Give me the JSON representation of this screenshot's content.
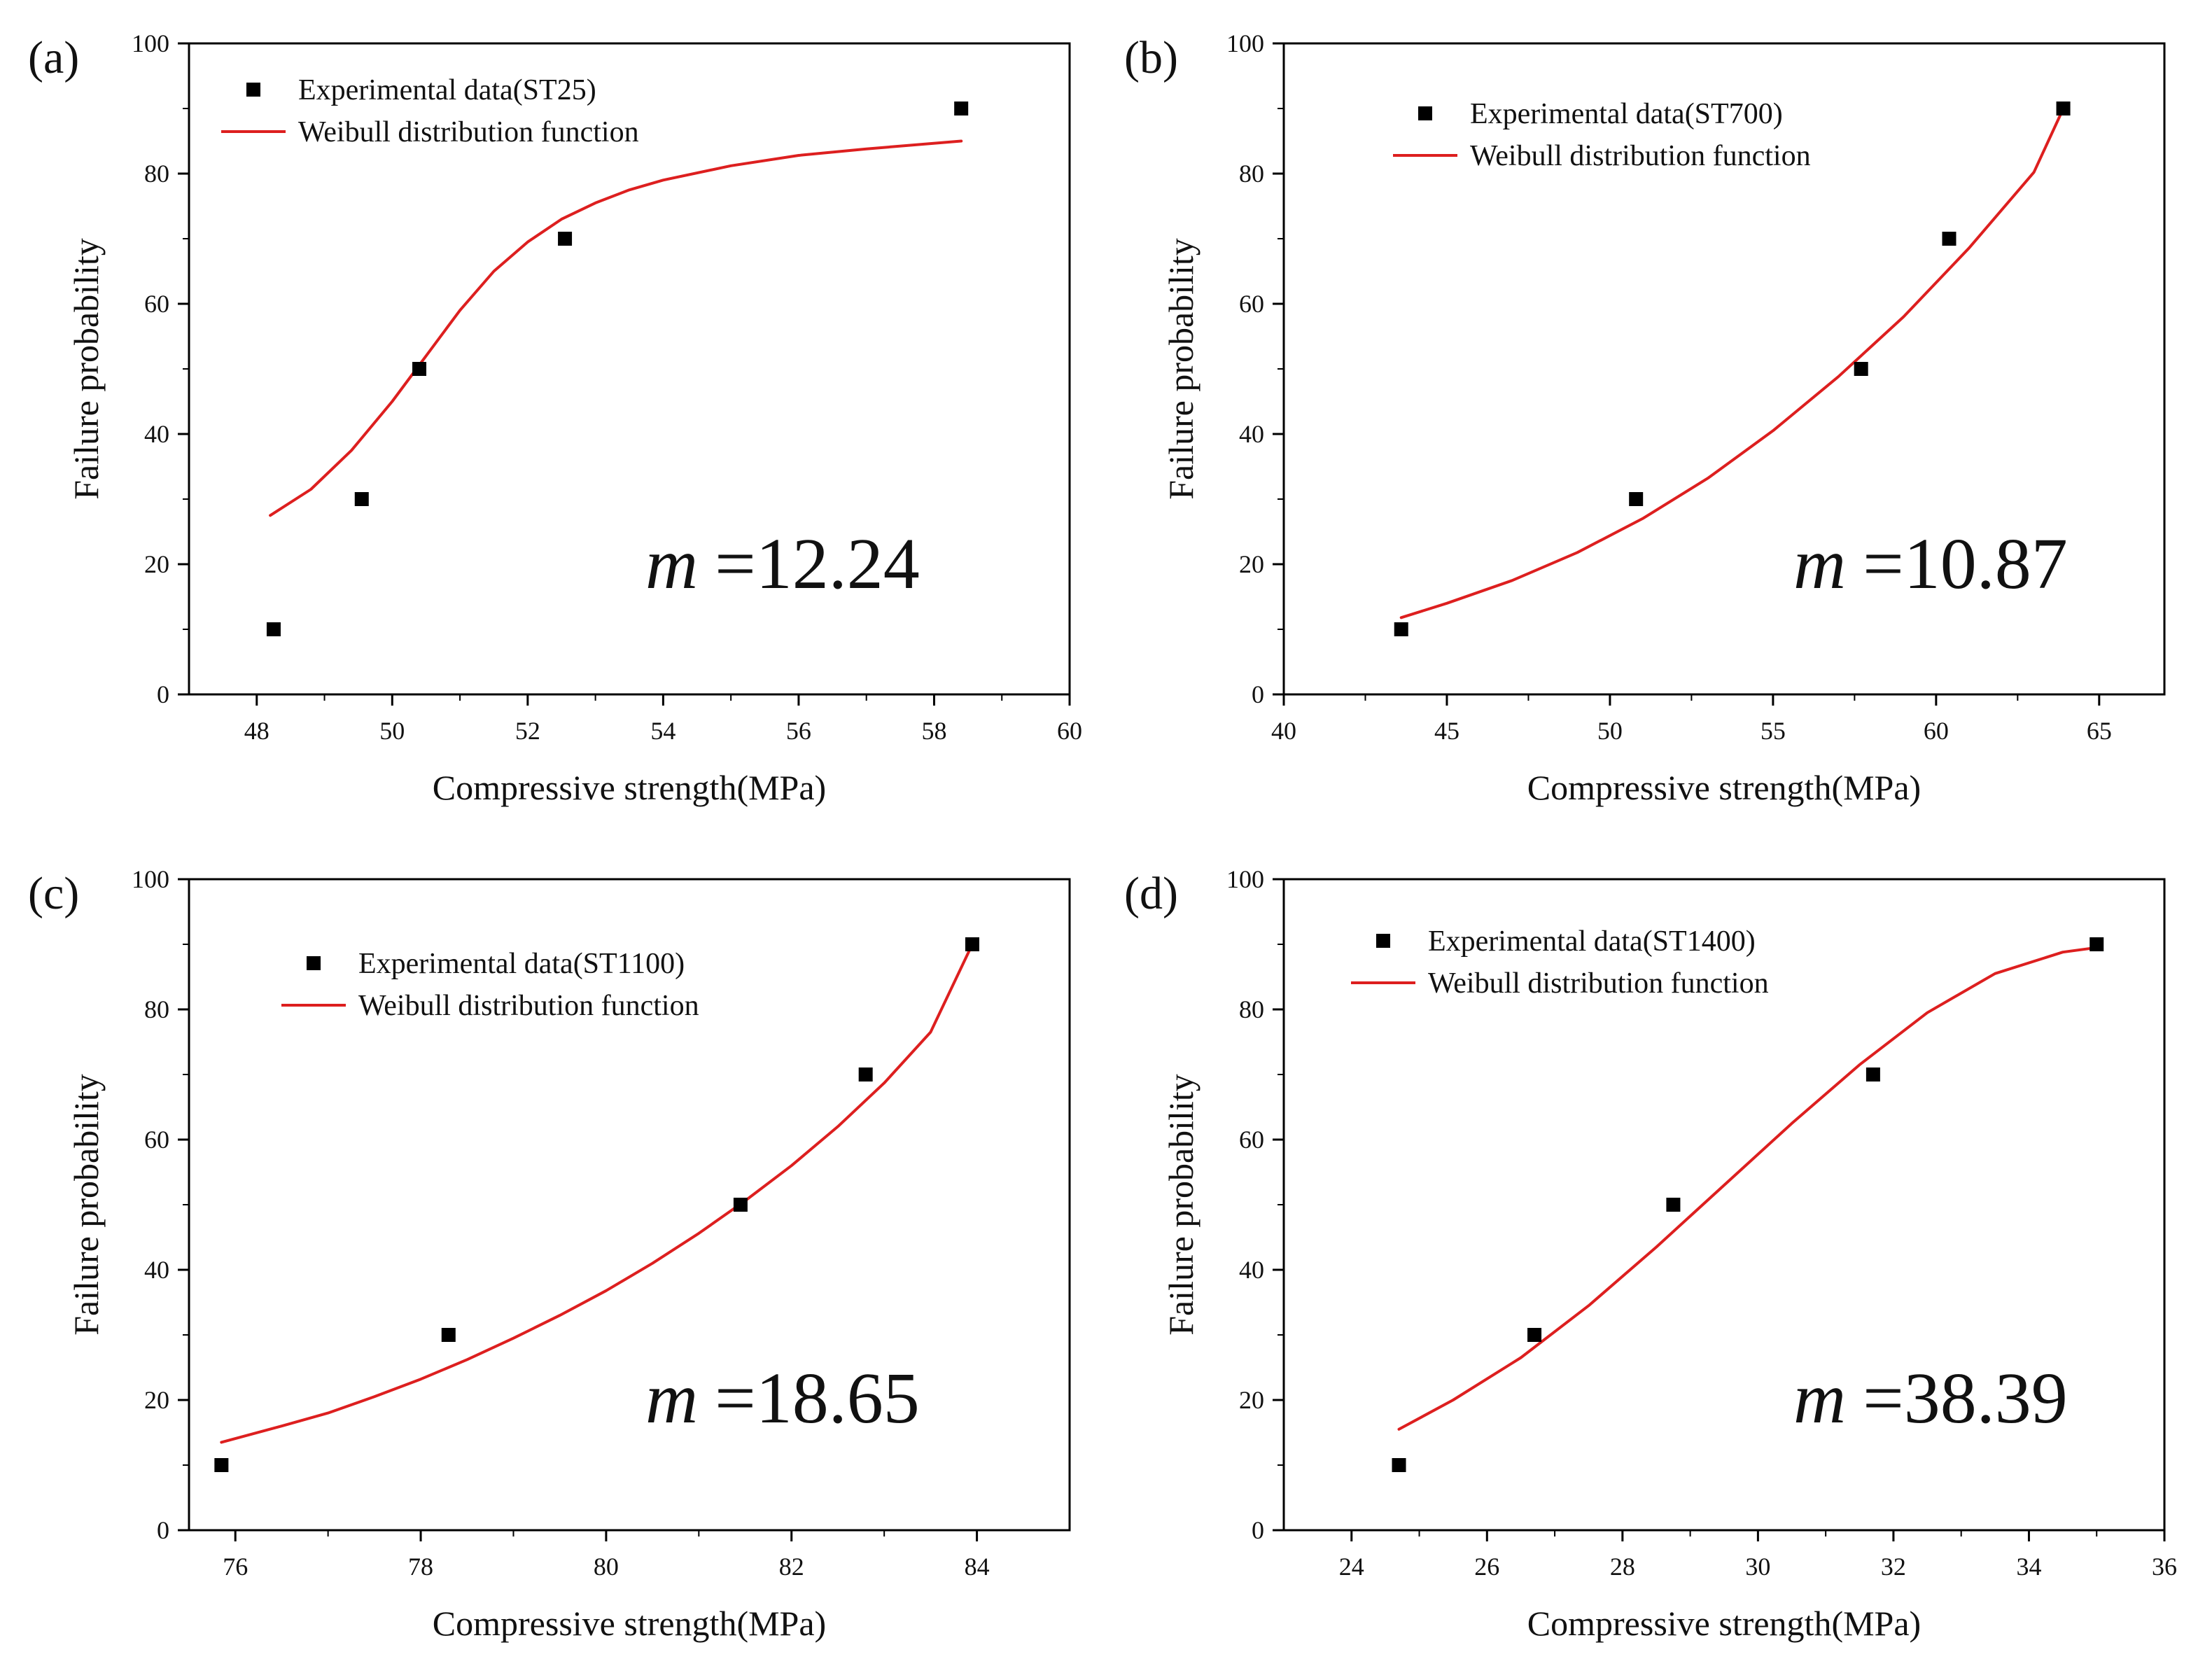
{
  "figure": {
    "colors": {
      "curve": "#dd1f1f",
      "marker": "#000000",
      "axis": "#000000"
    }
  },
  "chart_data": [
    {
      "panel": "(a)",
      "type": "scatter",
      "title": "",
      "xlabel": "Compressive strength(MPa)",
      "ylabel": "Failure probability",
      "xlim": [
        47,
        60
      ],
      "ylim": [
        0,
        100
      ],
      "xticks": [
        48,
        50,
        52,
        54,
        56,
        58,
        60
      ],
      "yticks": [
        0,
        20,
        40,
        60,
        80,
        100
      ],
      "legend": {
        "location": "top-left",
        "marker_label": "Experimental data(ST25)",
        "line_label": "Weibull distribution function"
      },
      "annotation": {
        "symbol": "m",
        "text": "=12.24"
      },
      "series": [
        {
          "name": "Experimental data(ST25)",
          "kind": "scatter",
          "x": [
            48.25,
            49.55,
            50.4,
            52.55,
            58.4
          ],
          "y": [
            10,
            30,
            50,
            70,
            90
          ]
        },
        {
          "name": "Weibull distribution function",
          "kind": "line",
          "x": [
            48.2,
            48.8,
            49.4,
            50.0,
            50.5,
            51.0,
            51.5,
            52.0,
            52.5,
            53.0,
            53.5,
            54.0,
            55.0,
            56.0,
            57.0,
            58.4
          ],
          "y": [
            27.5,
            31.5,
            37.5,
            45.0,
            52.0,
            59.0,
            65.0,
            69.5,
            73.0,
            75.5,
            77.5,
            79.0,
            81.2,
            82.8,
            83.8,
            85.0
          ]
        }
      ]
    },
    {
      "panel": "(b)",
      "type": "scatter",
      "title": "",
      "xlabel": "Compressive strength(MPa)",
      "ylabel": "Failure probability",
      "xlim": [
        40,
        67
      ],
      "ylim": [
        0,
        100
      ],
      "xticks": [
        40,
        45,
        50,
        55,
        60,
        65
      ],
      "yticks": [
        0,
        20,
        40,
        60,
        80,
        100
      ],
      "legend": {
        "location": "top-left",
        "marker_label": "Experimental data(ST700)",
        "line_label": "Weibull distribution function"
      },
      "annotation": {
        "symbol": "m",
        "text": "=10.87"
      },
      "series": [
        {
          "name": "Experimental data(ST700)",
          "kind": "scatter",
          "x": [
            43.6,
            50.8,
            57.7,
            60.4,
            63.9
          ],
          "y": [
            10,
            30,
            50,
            70,
            90
          ]
        },
        {
          "name": "Weibull distribution function",
          "kind": "line",
          "x": [
            43.6,
            45,
            47,
            49,
            51,
            53,
            55,
            57,
            59,
            61,
            63,
            63.9
          ],
          "y": [
            11.8,
            14.0,
            17.5,
            21.8,
            27.0,
            33.2,
            40.5,
            48.8,
            58.0,
            68.5,
            80.2,
            90.0
          ]
        }
      ]
    },
    {
      "panel": "(c)",
      "type": "scatter",
      "title": "",
      "xlabel": "Compressive strength(MPa)",
      "ylabel": "Failure probability",
      "xlim": [
        75.5,
        85
      ],
      "ylim": [
        0,
        100
      ],
      "xticks": [
        76,
        78,
        80,
        82,
        84
      ],
      "yticks": [
        0,
        20,
        40,
        60,
        80,
        100
      ],
      "legend": {
        "location": "top-left",
        "marker_label": "Experimental data(ST1100)",
        "line_label": "Weibull distribution function"
      },
      "annotation": {
        "symbol": "m",
        "text": "=18.65"
      },
      "series": [
        {
          "name": "Experimental data(ST1100)",
          "kind": "scatter",
          "x": [
            75.85,
            78.3,
            81.45,
            82.8,
            83.95
          ],
          "y": [
            10,
            30,
            50,
            70,
            90
          ]
        },
        {
          "name": "Weibull distribution function",
          "kind": "line",
          "x": [
            75.85,
            76.5,
            77,
            77.5,
            78,
            78.5,
            79,
            79.5,
            80,
            80.5,
            81,
            81.5,
            82,
            82.5,
            83,
            83.5,
            83.95
          ],
          "y": [
            13.5,
            16.0,
            18.0,
            20.5,
            23.2,
            26.2,
            29.5,
            33.0,
            36.8,
            41.0,
            45.6,
            50.6,
            56.0,
            62.0,
            68.7,
            76.5,
            90.0
          ]
        }
      ]
    },
    {
      "panel": "(d)",
      "type": "scatter",
      "title": "",
      "xlabel": "Compressive strength(MPa)",
      "ylabel": "Failure probability",
      "xlim": [
        23,
        36
      ],
      "ylim": [
        0,
        100
      ],
      "xticks": [
        24,
        26,
        28,
        30,
        32,
        34,
        36
      ],
      "yticks": [
        0,
        20,
        40,
        60,
        80,
        100
      ],
      "legend": {
        "location": "top-left",
        "marker_label": "Experimental data(ST1400)",
        "line_label": "Weibull distribution function"
      },
      "annotation": {
        "symbol": "m",
        "text": "=38.39"
      },
      "series": [
        {
          "name": "Experimental data(ST1400)",
          "kind": "scatter",
          "x": [
            24.7,
            26.7,
            28.75,
            31.7,
            35.0
          ],
          "y": [
            10,
            30,
            50,
            70,
            90
          ]
        },
        {
          "name": "Weibull distribution function",
          "kind": "line",
          "x": [
            24.7,
            25.5,
            26.5,
            27.5,
            28.5,
            29.5,
            30.5,
            31.5,
            32.5,
            33.5,
            34.5,
            35.0
          ],
          "y": [
            15.5,
            20.0,
            26.5,
            34.5,
            43.5,
            53.0,
            62.5,
            71.5,
            79.5,
            85.5,
            88.8,
            89.5
          ]
        }
      ]
    }
  ]
}
